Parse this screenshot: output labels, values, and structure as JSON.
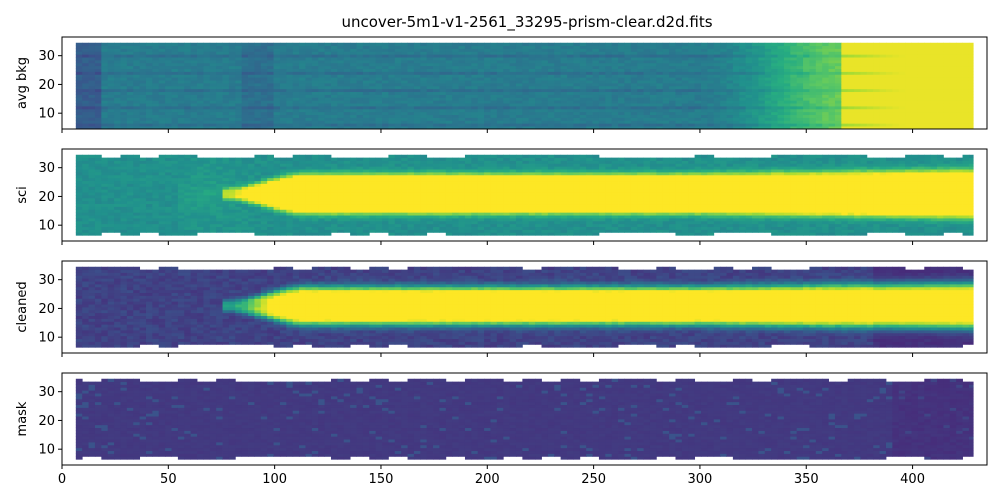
{
  "chart_data": {
    "type": "heatmap",
    "title": "uncover-5m1-v1-2561_33295-prism-clear.d2d.fits",
    "shared_x": true,
    "xlim": [
      0,
      435
    ],
    "x_ticks": [
      0,
      50,
      100,
      150,
      200,
      250,
      300,
      350,
      400
    ],
    "colormap": "viridis",
    "panels": [
      {
        "ylabel": "avg bkg",
        "ylim": [
          4.5,
          36.5
        ],
        "y_ticks": [
          10,
          20,
          30
        ],
        "data_extent": {
          "x": [
            6.5,
            428.5
          ],
          "y": [
            4.5,
            34.5
          ]
        },
        "bright_region_x_start": 360,
        "trace_y_center": null
      },
      {
        "ylabel": "sci",
        "ylim": [
          4.5,
          36.5
        ],
        "y_ticks": [
          10,
          20,
          30
        ],
        "data_extent": {
          "x": [
            6.5,
            428.5
          ],
          "y": [
            6.5,
            34.5
          ]
        },
        "trace_y_center": 21,
        "trace_x_start": 75
      },
      {
        "ylabel": "cleaned",
        "ylim": [
          4.5,
          36.5
        ],
        "y_ticks": [
          10,
          20,
          30
        ],
        "data_extent": {
          "x": [
            6.5,
            428.5
          ],
          "y": [
            6.5,
            34.5
          ]
        },
        "trace_y_center": 21,
        "trace_x_start": 75
      },
      {
        "ylabel": "mask",
        "ylim": [
          4.5,
          36.5
        ],
        "y_ticks": [
          10,
          20,
          30
        ],
        "data_extent": {
          "x": [
            6.5,
            428.5
          ],
          "y": [
            6.5,
            34.5
          ]
        },
        "trace_y_center": null
      }
    ]
  }
}
